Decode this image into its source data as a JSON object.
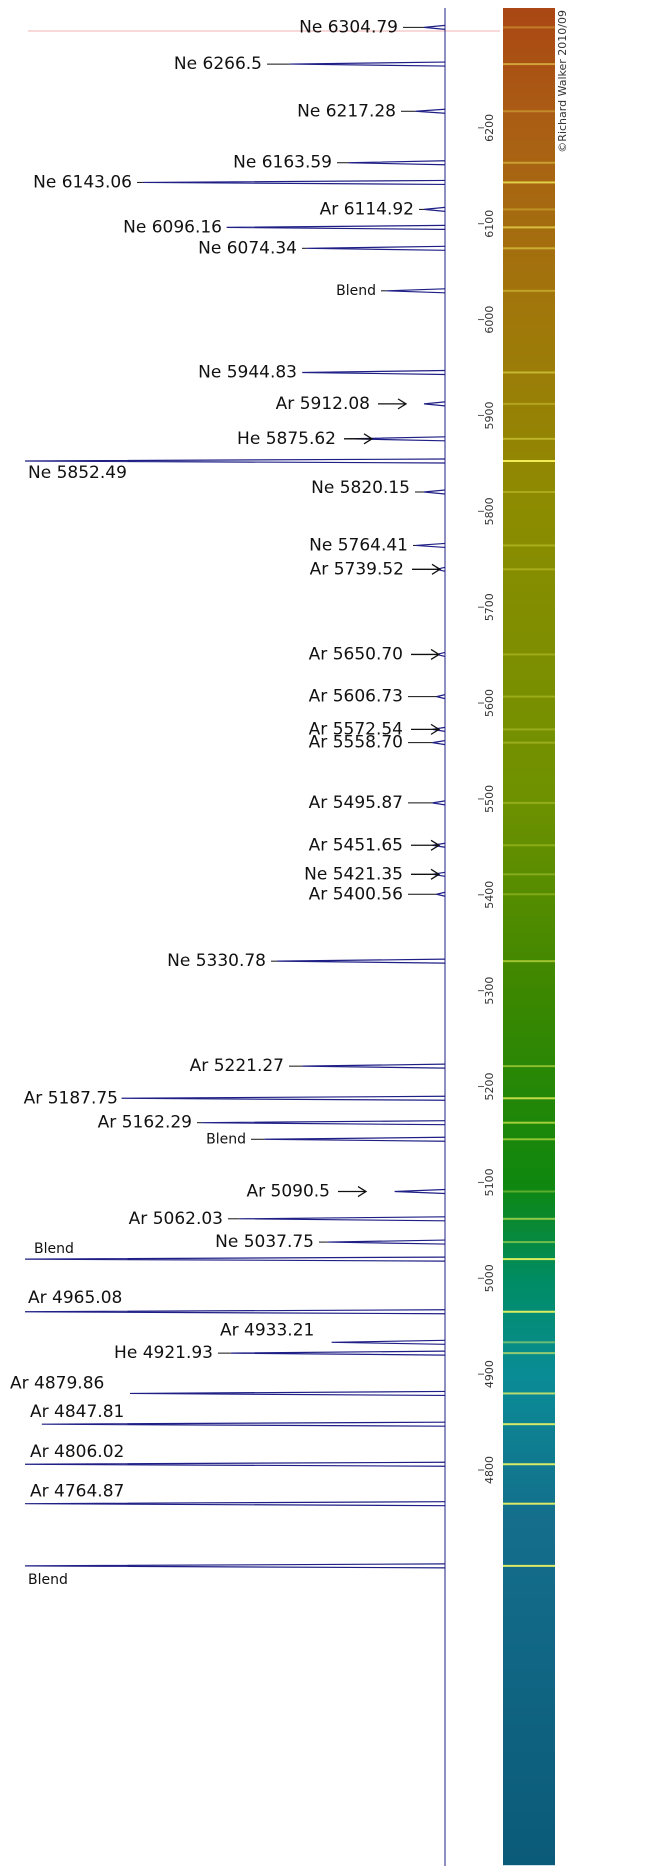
{
  "chart_data": {
    "type": "spectrum",
    "ylim": [
      4388,
      6325
    ],
    "yticks": [
      4800,
      4900,
      5000,
      5100,
      5200,
      5300,
      5400,
      5500,
      5600,
      5700,
      5800,
      5900,
      6000,
      6100,
      6200
    ],
    "credit": "©Richard Walker 2010/09",
    "line_color": "#1f1f86",
    "lines": [
      {
        "label": "Ne  6304.79",
        "wavelength": 6304.79,
        "intensity": 0.05
      },
      {
        "label": "Ne  6266.5",
        "wavelength": 6266.5,
        "intensity": 0.37
      },
      {
        "label": "Ne 6217.28",
        "wavelength": 6217.28,
        "intensity": 0.07
      },
      {
        "label": "Ne 6163.59",
        "wavelength": 6163.59,
        "intensity": 0.23
      },
      {
        "label": "Ne 6143.06",
        "wavelength": 6143.06,
        "intensity": 0.72
      },
      {
        "label": "Ar 6114.92",
        "wavelength": 6114.92,
        "intensity": 0.05
      },
      {
        "label": "Ne 6096.16",
        "wavelength": 6096.16,
        "intensity": 0.52
      },
      {
        "label": "Ne 6074.34",
        "wavelength": 6074.34,
        "intensity": 0.33
      },
      {
        "label": "Blend",
        "wavelength": 6030,
        "intensity": 0.14
      },
      {
        "label": "Ne 5944.83",
        "wavelength": 5944.83,
        "intensity": 0.34
      },
      {
        "label": "Ar 5912.08",
        "wavelength": 5912.08,
        "intensity": 0.05,
        "arrow": true
      },
      {
        "label": "He  5875.62",
        "wavelength": 5875.62,
        "intensity": 0.23,
        "arrow": true
      },
      {
        "label": "Ne    5852.49",
        "wavelength": 5852.49,
        "intensity": 1.0
      },
      {
        "label": "Ne  5820.15",
        "wavelength": 5820.15,
        "intensity": 0.05
      },
      {
        "label": "Ne  5764.41",
        "wavelength": 5764.41,
        "intensity": 0.07
      },
      {
        "label": "Ar  5739.52",
        "wavelength": 5739.52,
        "intensity": 0.02,
        "arrow": true
      },
      {
        "label": "Ar 5650.70",
        "wavelength": 5650.7,
        "intensity": 0.02,
        "arrow": true
      },
      {
        "label": "Ar 5606.73",
        "wavelength": 5606.73,
        "intensity": 0.02
      },
      {
        "label": "Ar 5572.54",
        "wavelength": 5572.54,
        "intensity": 0.03,
        "arrow": true
      },
      {
        "label": "Ar 5558.70",
        "wavelength": 5558.7,
        "intensity": 0.03
      },
      {
        "label": "Ar 5495.87",
        "wavelength": 5495.87,
        "intensity": 0.03
      },
      {
        "label": "Ar 5451.65",
        "wavelength": 5451.65,
        "intensity": 0.03,
        "arrow": true
      },
      {
        "label": "Ne 5421.35",
        "wavelength": 5421.35,
        "intensity": 0.03,
        "arrow": true
      },
      {
        "label": "Ar 5400.56",
        "wavelength": 5400.56,
        "intensity": 0.02
      },
      {
        "label": "Ne  5330.78",
        "wavelength": 5330.78,
        "intensity": 0.4
      },
      {
        "label": "Ar 5221.27",
        "wavelength": 5221.27,
        "intensity": 0.34
      },
      {
        "label": "Ar 5187.75",
        "wavelength": 5187.75,
        "intensity": 0.77
      },
      {
        "label": "Ar 5162.29",
        "wavelength": 5162.29,
        "intensity": 0.58
      },
      {
        "label": "Blend",
        "wavelength": 5145,
        "intensity": 0.43
      },
      {
        "label": "Ar 5090.5",
        "wavelength": 5090.5,
        "intensity": 0.12,
        "arrow": true
      },
      {
        "label": "Ar 5062.03",
        "wavelength": 5062.03,
        "intensity": 0.49
      },
      {
        "label": "Ne 5037.75",
        "wavelength": 5037.75,
        "intensity": 0.28
      },
      {
        "label": "Blend",
        "wavelength": 5020,
        "intensity": 1.0
      },
      {
        "label": "Ar 4965.08",
        "wavelength": 4965.08,
        "intensity": 1.0
      },
      {
        "label": "Ar 4933.21",
        "wavelength": 4933.21,
        "intensity": 0.27
      },
      {
        "label": "He 4921.93",
        "wavelength": 4921.93,
        "intensity": 0.51
      },
      {
        "label": "Ar 4879.86",
        "wavelength": 4879.86,
        "intensity": 0.75,
        "arrow": true
      },
      {
        "label": "Ar 4847.81",
        "wavelength": 4847.81,
        "intensity": 0.96
      },
      {
        "label": "Ar 4806.02",
        "wavelength": 4806.02,
        "intensity": 1.0
      },
      {
        "label": "Ar 4764.87",
        "wavelength": 4764.87,
        "intensity": 1.0
      },
      {
        "label": "Blend",
        "wavelength": 4700,
        "intensity": 1.0
      }
    ]
  }
}
